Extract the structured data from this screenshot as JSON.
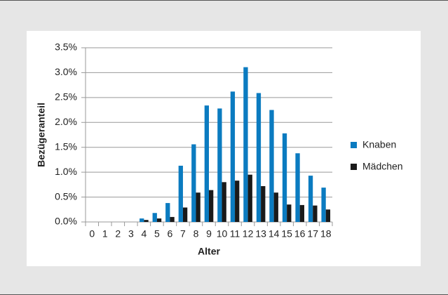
{
  "chart_data": {
    "type": "bar",
    "x_label": "Alter",
    "y_label": "Bezügeranteil",
    "categories": [
      "0",
      "1",
      "2",
      "3",
      "4",
      "5",
      "6",
      "7",
      "8",
      "9",
      "10",
      "11",
      "12",
      "13",
      "14",
      "15",
      "16",
      "17",
      "18"
    ],
    "series": [
      {
        "name": "Knaben",
        "color": "#0b7bc0",
        "values": [
          0,
          0,
          0,
          0,
          0.07,
          0.18,
          0.38,
          1.13,
          1.56,
          2.34,
          2.28,
          2.62,
          3.11,
          2.59,
          2.25,
          1.78,
          1.38,
          0.93,
          0.69
        ]
      },
      {
        "name": "Mädchen",
        "color": "#1a1a1a",
        "values": [
          0,
          0,
          0,
          0,
          0.04,
          0.07,
          0.1,
          0.29,
          0.59,
          0.64,
          0.8,
          0.83,
          0.95,
          0.72,
          0.59,
          0.35,
          0.34,
          0.33,
          0.25
        ]
      }
    ],
    "ylim": [
      0,
      3.5
    ],
    "yticks": [
      {
        "value": 0,
        "label": "0.0%"
      },
      {
        "value": 0.5,
        "label": "0.5%"
      },
      {
        "value": 1,
        "label": "1.0%"
      },
      {
        "value": 1.5,
        "label": "1.5%"
      },
      {
        "value": 2,
        "label": "2.0%"
      },
      {
        "value": 2.5,
        "label": "2.5%"
      },
      {
        "value": 3,
        "label": "3.0%"
      },
      {
        "value": 3.5,
        "label": "3.5%"
      }
    ],
    "grid": true,
    "legend": "right"
  }
}
